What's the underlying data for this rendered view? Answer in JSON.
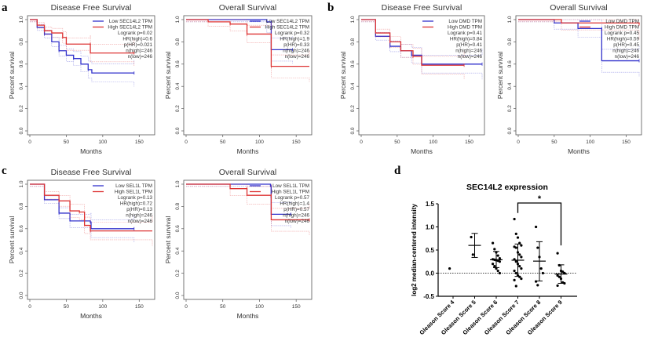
{
  "panel_labels": [
    "a",
    "b",
    "c",
    "d"
  ],
  "chart_data": [
    {
      "id": "a-dfs",
      "type": "line",
      "title": "Disease Free Survival",
      "xlabel": "Months",
      "ylabel": "Percent survival",
      "xlim": [
        0,
        168
      ],
      "ylim": [
        0,
        1
      ],
      "xticks": [
        0,
        50,
        100,
        150
      ],
      "yticks": [
        "0.0",
        "0.2",
        "0.4",
        "0.6",
        "0.8",
        "1.0"
      ],
      "legend": [
        "Low SEC14L2 TPM",
        "High SEC14L2 TPM"
      ],
      "stats": [
        "Logrank p=0.02",
        "HR(high)=0.6",
        "p(HR)=0.021",
        "n(high)=246",
        "n(low)=246"
      ],
      "series": [
        {
          "name": "Low SEC14L2 TPM",
          "color": "#3333cc",
          "points": [
            [
              0,
              1
            ],
            [
              10,
              0.93
            ],
            [
              20,
              0.87
            ],
            [
              30,
              0.8
            ],
            [
              40,
              0.72
            ],
            [
              50,
              0.68
            ],
            [
              60,
              0.65
            ],
            [
              70,
              0.6
            ],
            [
              80,
              0.55
            ],
            [
              85,
              0.52
            ],
            [
              143,
              0.52
            ]
          ]
        },
        {
          "name": "High SEC14L2 TPM",
          "color": "#dd3333",
          "points": [
            [
              0,
              1
            ],
            [
              10,
              0.95
            ],
            [
              20,
              0.9
            ],
            [
              30,
              0.88
            ],
            [
              45,
              0.84
            ],
            [
              50,
              0.78
            ],
            [
              83,
              0.78
            ],
            [
              83,
              0.7
            ],
            [
              143,
              0.7
            ]
          ]
        }
      ]
    },
    {
      "id": "a-os",
      "type": "line",
      "title": "Overall Survival",
      "xlabel": "Months",
      "ylabel": "Percent survival",
      "xlim": [
        0,
        168
      ],
      "ylim": [
        0,
        1
      ],
      "xticks": [
        0,
        50,
        100,
        150
      ],
      "yticks": [
        "0.0",
        "0.2",
        "0.4",
        "0.6",
        "0.8",
        "1.0"
      ],
      "legend": [
        "Low SEC14L2 TPM",
        "High SEC14L2 TPM"
      ],
      "stats": [
        "Logrank p=0.32",
        "HR(high)=1.9",
        "p(HR)=0.33",
        "n(high)=246",
        "n(low)=246"
      ],
      "series": [
        {
          "name": "Low SEC14L2 TPM",
          "color": "#3333cc",
          "points": [
            [
              0,
              1
            ],
            [
              110,
              0.98
            ],
            [
              116,
              0.98
            ],
            [
              116,
              0.73
            ],
            [
              145,
              0.73
            ]
          ]
        },
        {
          "name": "High SEC14L2 TPM",
          "color": "#dd3333",
          "points": [
            [
              0,
              1
            ],
            [
              30,
              0.98
            ],
            [
              60,
              0.96
            ],
            [
              83,
              0.96
            ],
            [
              83,
              0.87
            ],
            [
              116,
              0.87
            ],
            [
              116,
              0.58
            ],
            [
              168,
              0.58
            ]
          ]
        }
      ]
    },
    {
      "id": "b-dfs",
      "type": "line",
      "title": "Disease Free Survival",
      "xlabel": "Months",
      "ylabel": "Percent survival",
      "xlim": [
        0,
        168
      ],
      "ylim": [
        0,
        1
      ],
      "xticks": [
        0,
        50,
        100,
        150
      ],
      "yticks": [
        "0.0",
        "0.2",
        "0.4",
        "0.6",
        "0.8",
        "1.0"
      ],
      "legend": [
        "Low DMD TPM",
        "High DMD TPM"
      ],
      "stats": [
        "Logrank p=0.41",
        "HR(high)=0.84",
        "p(HR)=0.41",
        "n(high)=246",
        "n(low)=246"
      ],
      "series": [
        {
          "name": "Low DMD TPM",
          "color": "#3333cc",
          "points": [
            [
              0,
              1
            ],
            [
              20,
              0.85
            ],
            [
              40,
              0.76
            ],
            [
              55,
              0.72
            ],
            [
              70,
              0.68
            ],
            [
              84,
              0.6
            ],
            [
              168,
              0.6
            ]
          ]
        },
        {
          "name": "High DMD TPM",
          "color": "#dd3333",
          "points": [
            [
              0,
              1
            ],
            [
              20,
              0.88
            ],
            [
              40,
              0.8
            ],
            [
              55,
              0.72
            ],
            [
              72,
              0.67
            ],
            [
              84,
              0.59
            ],
            [
              143,
              0.59
            ]
          ]
        }
      ]
    },
    {
      "id": "b-os",
      "type": "line",
      "title": "Overall Survival",
      "xlabel": "Months",
      "ylabel": "Percent survival",
      "xlim": [
        0,
        168
      ],
      "ylim": [
        0,
        1
      ],
      "xticks": [
        0,
        50,
        100,
        150
      ],
      "yticks": [
        "0.0",
        "0.2",
        "0.4",
        "0.6",
        "0.8",
        "1.0"
      ],
      "legend": [
        "Low DMD TPM",
        "High DMD TPM"
      ],
      "stats": [
        "Logrank p=0.45",
        "HR(high)=0.59",
        "p(HR)=0.45",
        "n(high)=246",
        "n(low)=246"
      ],
      "series": [
        {
          "name": "Low DMD TPM",
          "color": "#3333cc",
          "points": [
            [
              0,
              1
            ],
            [
              50,
              0.97
            ],
            [
              83,
              0.96
            ],
            [
              83,
              0.92
            ],
            [
              116,
              0.92
            ],
            [
              116,
              0.63
            ],
            [
              168,
              0.63
            ]
          ]
        },
        {
          "name": "High DMD TPM",
          "color": "#dd3333",
          "points": [
            [
              0,
              1
            ],
            [
              60,
              0.97
            ],
            [
              168,
              0.96
            ]
          ]
        }
      ]
    },
    {
      "id": "c-dfs",
      "type": "line",
      "title": "Disease Free Survival",
      "xlabel": "Months",
      "ylabel": "Percent survival",
      "xlim": [
        0,
        168
      ],
      "ylim": [
        0,
        1
      ],
      "xticks": [
        0,
        50,
        100,
        150
      ],
      "yticks": [
        "0.0",
        "0.2",
        "0.4",
        "0.6",
        "0.8",
        "1.0"
      ],
      "legend": [
        "Low SEL1L TPM",
        "High SEL1L TPM"
      ],
      "stats": [
        "Logrank p=0.13",
        "HR(high)=0.72",
        "p(HR)=0.13",
        "n(high)=246",
        "n(low)=246"
      ],
      "series": [
        {
          "name": "Low SEL1L TPM",
          "color": "#3333cc",
          "points": [
            [
              0,
              1
            ],
            [
              20,
              0.86
            ],
            [
              40,
              0.74
            ],
            [
              55,
              0.67
            ],
            [
              83,
              0.66
            ],
            [
              84,
              0.6
            ],
            [
              143,
              0.6
            ]
          ]
        },
        {
          "name": "High SEL1L TPM",
          "color": "#dd3333",
          "points": [
            [
              0,
              1
            ],
            [
              20,
              0.9
            ],
            [
              40,
              0.85
            ],
            [
              55,
              0.76
            ],
            [
              68,
              0.75
            ],
            [
              75,
              0.63
            ],
            [
              83,
              0.58
            ],
            [
              168,
              0.58
            ]
          ]
        }
      ]
    },
    {
      "id": "c-os",
      "type": "line",
      "title": "Overall Survival",
      "xlabel": "Months",
      "ylabel": "Percent survival",
      "xlim": [
        0,
        168
      ],
      "ylim": [
        0,
        1
      ],
      "xticks": [
        0,
        50,
        100,
        150
      ],
      "yticks": [
        "0.0",
        "0.2",
        "0.4",
        "0.6",
        "0.8",
        "1.0"
      ],
      "legend": [
        "Low SEL1L TPM",
        "High SEL1L TPM"
      ],
      "stats": [
        "Logrank p=0.57",
        "HR(high)=1.4",
        "p(HR)=0.57",
        "n(high)=246",
        "n(low)=246"
      ],
      "series": [
        {
          "name": "Low SEL1L TPM",
          "color": "#3333cc",
          "points": [
            [
              0,
              1
            ],
            [
              115,
              0.98
            ],
            [
              116,
              0.98
            ],
            [
              116,
              0.73
            ],
            [
              143,
              0.73
            ]
          ]
        },
        {
          "name": "High SEL1L TPM",
          "color": "#dd3333",
          "points": [
            [
              0,
              1
            ],
            [
              60,
              0.96
            ],
            [
              83,
              0.96
            ],
            [
              83,
              0.9
            ],
            [
              116,
              0.9
            ],
            [
              116,
              0.68
            ],
            [
              168,
              0.68
            ]
          ]
        }
      ]
    },
    {
      "id": "d",
      "type": "scatter",
      "title": "SEC14L2 expression",
      "ylabel": "log2 median-centered intensity",
      "ylim": [
        -0.5,
        1.5
      ],
      "yticks": [
        "-0.5",
        "0.0",
        "0.5",
        "1.0",
        "1.5"
      ],
      "categories": [
        "Gleason Score 4",
        "Gleason Score 5",
        "Gleason Score 6",
        "Gleason Score 7",
        "Gleason Score 8",
        "Gleason Score 9"
      ],
      "groups": [
        {
          "points": [
            0.1
          ]
        },
        {
          "points": [
            0.78,
            0.4
          ],
          "mean": 0.6,
          "sd_low": 0.34,
          "sd_high": 0.86
        },
        {
          "points": [
            0.65,
            0.52,
            0.45,
            0.38,
            0.32,
            0.3,
            0.29,
            0.28,
            0.27,
            0.25,
            0.2,
            0.15,
            0.1,
            0.05,
            0.0
          ],
          "mean": 0.29,
          "sd_low": 0.12,
          "sd_high": 0.47
        },
        {
          "points": [
            1.17,
            0.85,
            0.77,
            0.65,
            0.6,
            0.57,
            0.55,
            0.45,
            0.4,
            0.35,
            0.3,
            0.25,
            0.2,
            0.15,
            0.1,
            0.05,
            0.0,
            -0.05,
            -0.08,
            -0.12,
            -0.15,
            -0.28
          ],
          "mean": 0.28,
          "sd_low": -0.07,
          "sd_high": 0.63
        },
        {
          "points": [
            1.0,
            0.55,
            0.35,
            0.1,
            0.0,
            -0.18,
            -0.26
          ],
          "mean": 0.26,
          "sd_low": -0.17,
          "sd_high": 0.68
        },
        {
          "points": [
            0.43,
            0.17,
            0.05,
            0.03,
            0.0,
            -0.05,
            -0.08,
            -0.12,
            -0.2,
            -0.22,
            -0.27
          ],
          "mean": -0.02,
          "sd_low": -0.22,
          "sd_high": 0.18
        }
      ],
      "reference_line": 0,
      "significance": {
        "between": [
          "Gleason Score 7",
          "Gleason Score 9"
        ],
        "label": "*"
      }
    }
  ]
}
